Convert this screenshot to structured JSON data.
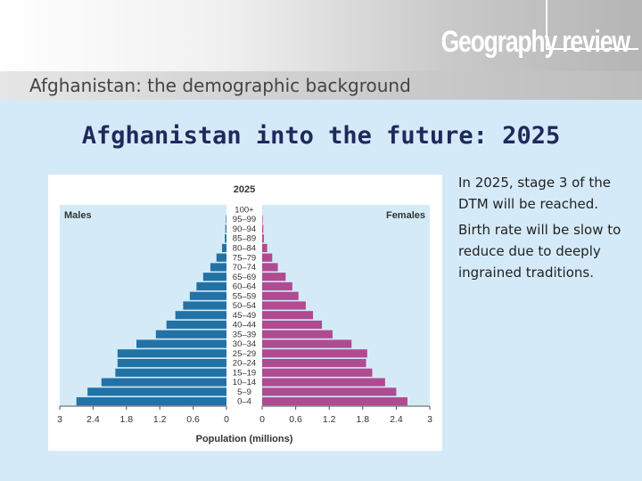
{
  "header": {
    "logo_text": "Geography review",
    "subtitle": "Afghanistan: the demographic background"
  },
  "slide": {
    "title": "Afghanistan into the future: 2025",
    "paragraphs": [
      "In 2025, stage 3 of the DTM will be reached.",
      "Birth rate will be slow to reduce due to deeply ingrained traditions."
    ]
  },
  "chart_data": {
    "type": "bar",
    "orientation": "horizontal population pyramid",
    "title": "2025",
    "xlabel": "Population (millions)",
    "categories": [
      "100+",
      "95–99",
      "90–94",
      "85–89",
      "80–84",
      "75–79",
      "70–74",
      "65–69",
      "60–64",
      "55–59",
      "50–54",
      "45–49",
      "40–44",
      "35–39",
      "30–34",
      "25–29",
      "20–24",
      "15–19",
      "10–14",
      "5–9",
      "0–4"
    ],
    "series": [
      {
        "name": "Males",
        "color": "#2272a6",
        "values": [
          0,
          0.01,
          0.02,
          0.03,
          0.08,
          0.18,
          0.29,
          0.42,
          0.54,
          0.66,
          0.78,
          0.92,
          1.08,
          1.27,
          1.62,
          1.96,
          1.96,
          2.0,
          2.25,
          2.5,
          2.7
        ]
      },
      {
        "name": "Females",
        "color": "#b04a91",
        "values": [
          0,
          0.01,
          0.02,
          0.03,
          0.09,
          0.18,
          0.28,
          0.42,
          0.54,
          0.65,
          0.78,
          0.91,
          1.07,
          1.26,
          1.6,
          1.88,
          1.86,
          1.97,
          2.2,
          2.4,
          2.6
        ]
      }
    ],
    "xticks": [
      "3",
      "2.4",
      "1.8",
      "1.2",
      "0.6",
      "0",
      "0",
      "0.6",
      "1.2",
      "1.8",
      "2.4",
      "3"
    ],
    "xlim": [
      0,
      3
    ],
    "background": "#d4ebf7"
  }
}
